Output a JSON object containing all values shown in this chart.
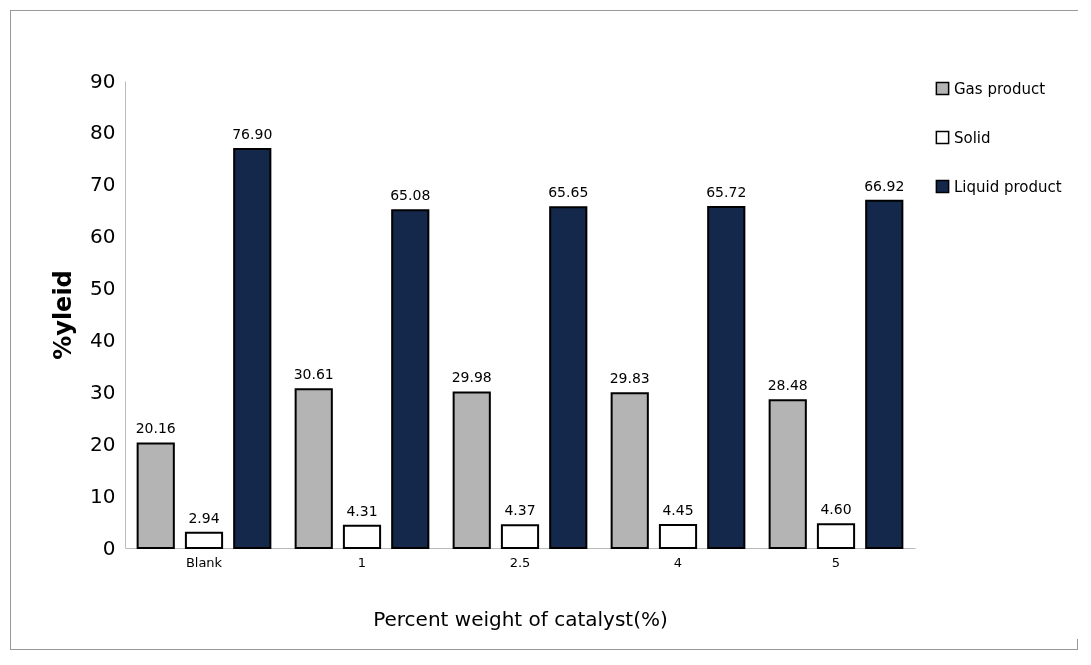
{
  "chart_data": {
    "type": "bar",
    "xlabel": "Percent weight of catalyst(%)",
    "ylabel": "%yleid",
    "categories": [
      "Blank",
      "1",
      "2.5",
      "4",
      "5"
    ],
    "series": [
      {
        "name": "Gas product",
        "color": "#b4b4b4",
        "values": [
          20.16,
          30.61,
          29.98,
          29.83,
          28.48
        ],
        "value_labels": [
          "20.16",
          "30.61",
          "29.98",
          "29.83",
          "28.48"
        ]
      },
      {
        "name": "Solid",
        "color": "#ffffff",
        "values": [
          2.94,
          4.31,
          4.37,
          4.45,
          4.6
        ],
        "value_labels": [
          "2.94",
          "4.31",
          "4.37",
          "4.45",
          "4.60"
        ]
      },
      {
        "name": "Liquid product",
        "color": "#14284b",
        "values": [
          76.9,
          65.08,
          65.65,
          65.72,
          66.92
        ],
        "value_labels": [
          "76.90",
          "65.08",
          "65.65",
          "65.72",
          "66.92"
        ]
      }
    ],
    "ylim": [
      0,
      90
    ],
    "yticks": [
      0,
      10,
      20,
      30,
      40,
      50,
      60,
      70,
      80,
      90
    ],
    "grid": false,
    "legend": "right"
  }
}
